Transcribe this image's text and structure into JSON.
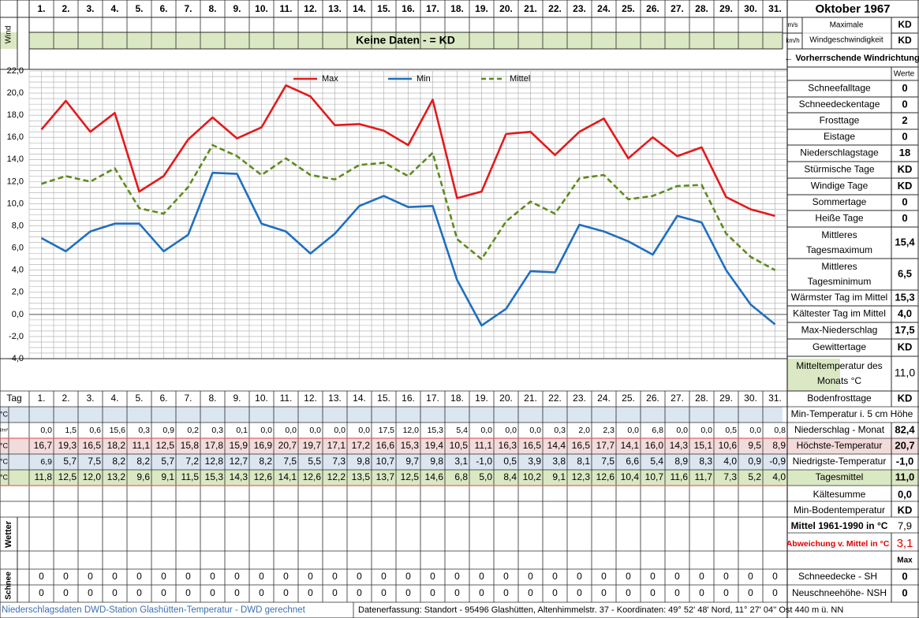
{
  "header": {
    "month_title": "Oktober 1967",
    "wind_label": "Wind",
    "unit_ms": "m/s",
    "unit_kmh": "km/h",
    "max_wind_label_1": "Maximale",
    "max_wind_label_2": "Windgeschwindigkeit",
    "max_wind_ms": "KD",
    "max_wind_kmh": "KD",
    "no_data_text": "Keine Daten -  = KD",
    "prevailing_wind": "← Vorherrschende Windrichtung"
  },
  "days": [
    "1.",
    "2.",
    "3.",
    "4.",
    "5.",
    "6.",
    "7.",
    "8.",
    "9.",
    "10.",
    "11.",
    "12.",
    "13.",
    "14.",
    "15.",
    "16.",
    "17.",
    "18.",
    "19.",
    "20.",
    "21.",
    "22.",
    "23.",
    "24.",
    "25.",
    "26.",
    "27.",
    "28.",
    "29.",
    "30.",
    "31."
  ],
  "chart_data": {
    "type": "line",
    "x": [
      1,
      2,
      3,
      4,
      5,
      6,
      7,
      8,
      9,
      10,
      11,
      12,
      13,
      14,
      15,
      16,
      17,
      18,
      19,
      20,
      21,
      22,
      23,
      24,
      25,
      26,
      27,
      28,
      29,
      30,
      31
    ],
    "series": [
      {
        "name": "Max",
        "color": "#e31a1c",
        "style": "solid",
        "values": [
          16.7,
          19.3,
          16.5,
          18.2,
          11.1,
          12.5,
          15.8,
          17.8,
          15.9,
          16.9,
          20.7,
          19.7,
          17.1,
          17.2,
          16.6,
          15.3,
          19.4,
          10.5,
          11.1,
          16.3,
          16.5,
          14.4,
          16.5,
          17.7,
          14.1,
          16.0,
          14.3,
          15.1,
          10.6,
          9.5,
          8.9
        ]
      },
      {
        "name": "Min",
        "color": "#1f6fbf",
        "style": "solid",
        "values": [
          6.9,
          5.7,
          7.5,
          8.2,
          8.2,
          5.7,
          7.2,
          12.8,
          12.7,
          8.2,
          7.5,
          5.5,
          7.3,
          9.8,
          10.7,
          9.7,
          9.8,
          3.1,
          -1.0,
          0.5,
          3.9,
          3.8,
          8.1,
          7.5,
          6.6,
          5.4,
          8.9,
          8.3,
          4.0,
          0.9,
          -0.9
        ]
      },
      {
        "name": "Mittel",
        "color": "#5f8a1e",
        "style": "dashed",
        "values": [
          11.8,
          12.5,
          12.0,
          13.2,
          9.6,
          9.1,
          11.5,
          15.3,
          14.3,
          12.6,
          14.1,
          12.6,
          12.2,
          13.5,
          13.7,
          12.5,
          14.6,
          6.8,
          5.0,
          8.4,
          10.2,
          9.1,
          12.3,
          12.6,
          10.4,
          10.7,
          11.6,
          11.7,
          7.3,
          5.2,
          4.0
        ]
      }
    ],
    "ylim": [
      -4,
      22
    ],
    "ytick_labels": [
      "22,0",
      "20,0",
      "18,0",
      "16,0",
      "14,0",
      "12,0",
      "10,0",
      "8,0",
      "6,0",
      "4,0",
      "2,0",
      "0,0",
      "-2,0",
      "-4,0"
    ],
    "legend_placement": "top-center",
    "grid": true
  },
  "table": {
    "tag_label": "Tag",
    "row_labels": {
      "min5": "°C",
      "rain": "l/m²",
      "max": "°C",
      "min": "°C",
      "mean": "°C"
    },
    "rain": [
      "0,0",
      "1,5",
      "0,6",
      "15,6",
      "0,3",
      "0,9",
      "0,2",
      "0,3",
      "0,1",
      "0,0",
      "0,0",
      "0,0",
      "0,0",
      "0,0",
      "17,5",
      "12,0",
      "15,3",
      "5,4",
      "0,0",
      "0,0",
      "0,0",
      "0,3",
      "2,0",
      "2,3",
      "0,0",
      "6,8",
      "0,0",
      "0,0",
      "0,5",
      "0,0",
      "0,8"
    ],
    "max": [
      "16,7",
      "19,3",
      "16,5",
      "18,2",
      "11,1",
      "12,5",
      "15,8",
      "17,8",
      "15,9",
      "16,9",
      "20,7",
      "19,7",
      "17,1",
      "17,2",
      "16,6",
      "15,3",
      "19,4",
      "10,5",
      "11,1",
      "16,3",
      "16,5",
      "14,4",
      "16,5",
      "17,7",
      "14,1",
      "16,0",
      "14,3",
      "15,1",
      "10,6",
      "9,5",
      "8,9"
    ],
    "min": [
      "6,9",
      "5,7",
      "7,5",
      "8,2",
      "8,2",
      "5,7",
      "7,2",
      "12,8",
      "12,7",
      "8,2",
      "7,5",
      "5,5",
      "7,3",
      "9,8",
      "10,7",
      "9,7",
      "9,8",
      "3,1",
      "-1,0",
      "0,5",
      "3,9",
      "3,8",
      "8,1",
      "7,5",
      "6,6",
      "5,4",
      "8,9",
      "8,3",
      "4,0",
      "0,9",
      "-0,9"
    ],
    "mean": [
      "11,8",
      "12,5",
      "12,0",
      "13,2",
      "9,6",
      "9,1",
      "11,5",
      "15,3",
      "14,3",
      "12,6",
      "14,1",
      "12,6",
      "12,2",
      "13,5",
      "13,7",
      "12,5",
      "14,6",
      "6,8",
      "5,0",
      "8,4",
      "10,2",
      "9,1",
      "12,3",
      "12,6",
      "10,4",
      "10,7",
      "11,6",
      "11,7",
      "7,3",
      "5,2",
      "4,0"
    ],
    "weather_label": "Wetter",
    "snow_label": "Schnee",
    "snow_depth": [
      "0",
      "0",
      "0",
      "0",
      "0",
      "0",
      "0",
      "0",
      "0",
      "0",
      "0",
      "0",
      "0",
      "0",
      "0",
      "0",
      "0",
      "0",
      "0",
      "0",
      "0",
      "0",
      "0",
      "0",
      "0",
      "0",
      "0",
      "0",
      "0",
      "0",
      "0"
    ],
    "new_snow": [
      "0",
      "0",
      "0",
      "0",
      "0",
      "0",
      "0",
      "0",
      "0",
      "0",
      "0",
      "0",
      "0",
      "0",
      "0",
      "0",
      "0",
      "0",
      "0",
      "0",
      "0",
      "0",
      "0",
      "0",
      "0",
      "0",
      "0",
      "0",
      "0",
      "0",
      "0"
    ]
  },
  "stats": {
    "values_header": "Werte",
    "items": [
      {
        "label": "Schneefalltage",
        "value": "0"
      },
      {
        "label": "Schneedeckentage",
        "value": "0"
      },
      {
        "label": "Frosttage",
        "value": "2"
      },
      {
        "label": "Eistage",
        "value": "0"
      },
      {
        "label": "Niederschlagstage",
        "value": "18"
      },
      {
        "label": "Stürmische Tage",
        "value": "KD"
      },
      {
        "label": "Windige Tage",
        "value": "KD"
      },
      {
        "label": "Sommertage",
        "value": "0"
      },
      {
        "label": "Heiße Tage",
        "value": "0"
      },
      {
        "label": "Mittleres",
        "label2": "Tagesmaximum",
        "value": "15,4"
      },
      {
        "label": "Mittleres",
        "label2": "Tagesminimum",
        "value": "6,5"
      },
      {
        "label": "Wärmster Tag im Mittel",
        "value": "15,3"
      },
      {
        "label": "Kältester Tag im Mittel",
        "value": "4,0"
      },
      {
        "label": "Max-Niederschlag",
        "value": "17,5"
      },
      {
        "label": "Gewittertage",
        "value": "KD"
      },
      {
        "label": "Mitteltemperatur des",
        "label2": "Monats °C",
        "value": "11,0"
      },
      {
        "label": "Bodenfrosttage",
        "value": "KD"
      }
    ],
    "min5_label": "Min-Temperatur i. 5 cm Höhe",
    "rain_month_label": "Niederschlag - Monat",
    "rain_month_value": "82,4",
    "max_temp_label": "Höchste-Temperatur",
    "max_temp_value": "20,7",
    "min_temp_label": "Niedrigste-Temperatur",
    "min_temp_value": "-1,0",
    "mean_label": "Tagesmittel",
    "mean_value": "11,0",
    "cold_sum_label": "Kältesumme",
    "cold_sum_value": "0,0",
    "min_ground_label": "Min-Bodentemperatur",
    "min_ground_value": "KD",
    "normal_label": "Mittel 1961-1990 in °C",
    "normal_value": "7,9",
    "deviation_label": "Abweichung v. Mittel in °C",
    "deviation_value": "3,1",
    "max_label": "Max",
    "snow_depth_label": "Schneedecke -   SH",
    "snow_depth_value": "0",
    "new_snow_label": "Neuschneehöhe- NSH",
    "new_snow_value": "0"
  },
  "footer": {
    "left": "Niederschlagsdaten DWD-Station Glashütten-Temperatur -  DWD gerechnet",
    "right": "Datenerfassung:  Standort -  95496  Glashütten, Altenhimmelstr. 37 - Koordinaten:  49° 52' 48' Nord,   11° 27' 04'' Ost   440 m ü. NN"
  },
  "colors": {
    "green_band": "#dbe8c4",
    "blue_band": "#dce6f1",
    "pink_band": "#f2dcdb",
    "deviation_red": "#e00000"
  }
}
